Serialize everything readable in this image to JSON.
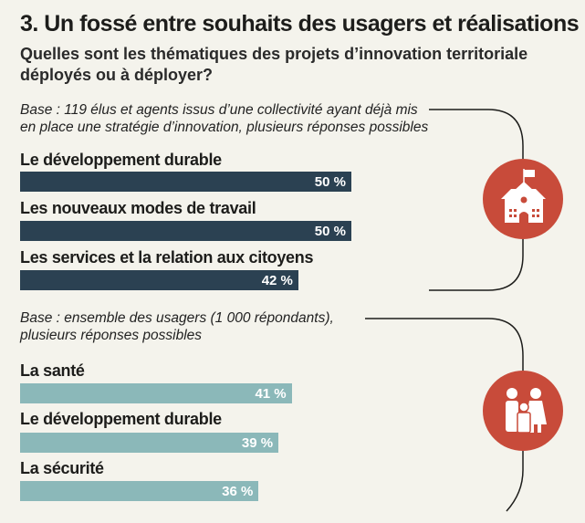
{
  "colors": {
    "background": "#f4f3ec",
    "dark_bar": "#2b4152",
    "light_bar": "#8bb8b9",
    "accent": "#c84b3a"
  },
  "chart_data": {
    "type": "bar",
    "title": "3. Un fossé entre souhaits des usagers et réalisations",
    "subtitle": [
      "Quelles sont les thématiques des projets d’innovation territoriale",
      "déployés ou à déployer?"
    ],
    "groups": [
      {
        "base": [
          "Base : 119 élus et agents issus d’une collectivité ayant déjà mis",
          "en place une stratégie d’innovation, plusieurs réponses possibles"
        ],
        "icon": "school-icon",
        "categories": [
          "Le développement durable",
          "Les nouveaux modes de travail",
          "Les services et la relation aux citoyens"
        ],
        "values": [
          50,
          50,
          42
        ],
        "labels": [
          "50 %",
          "50 %",
          "42 %"
        ]
      },
      {
        "base": [
          "Base : ensemble des usagers (1 000 répondants),",
          "plusieurs réponses possibles"
        ],
        "icon": "family-icon",
        "categories": [
          "La santé",
          "Le développement durable",
          "La sécurité"
        ],
        "values": [
          41,
          39,
          36
        ],
        "labels": [
          "41 %",
          "39 %",
          "36 %"
        ]
      }
    ],
    "unit": "%"
  }
}
